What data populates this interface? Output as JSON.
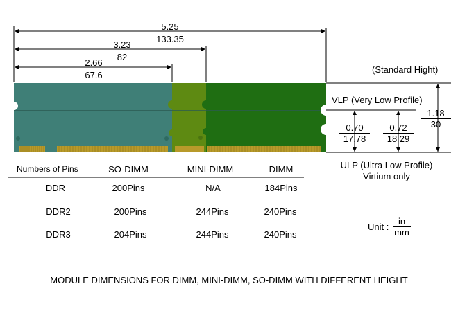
{
  "dimensions": {
    "total": {
      "in": "5.25",
      "mm": "133.35"
    },
    "mini": {
      "in": "3.23",
      "mm": "82"
    },
    "so": {
      "in": "2.66",
      "mm": "67.6"
    },
    "height": {
      "in": "1.18",
      "mm": "30"
    },
    "vlp": {
      "in": "0.70",
      "mm": "17.78"
    },
    "ulp": {
      "in": "0.72",
      "mm": "18.29"
    }
  },
  "labels": {
    "standard": "(Standard Hight)",
    "vlp": "VLP (Very Low Profile)",
    "ulp_line1": "ULP (Ultra Low Profile)",
    "ulp_line2": "Virtium only",
    "unit_prefix": "Unit :",
    "unit_num": "in",
    "unit_den": "mm"
  },
  "colors": {
    "so_dimm": "#3f7f77",
    "mini_dimm": "#5e8a12",
    "dimm": "#1f6e12",
    "pins": "#b89a2a"
  },
  "table": {
    "headers": [
      "Numbers of Pins",
      "SO-DIMM",
      "MINI-DIMM",
      "DIMM"
    ],
    "rows": [
      [
        "DDR",
        "200Pins",
        "N/A",
        "184Pins"
      ],
      [
        "DDR2",
        "200Pins",
        "244Pins",
        "240Pins"
      ],
      [
        "DDR3",
        "204Pins",
        "244Pins",
        "240Pins"
      ]
    ]
  },
  "caption": "MODULE DIMENSIONS FOR DIMM, MINI-DIMM, SO-DIMM WITH DIFFERENT HEIGHT"
}
